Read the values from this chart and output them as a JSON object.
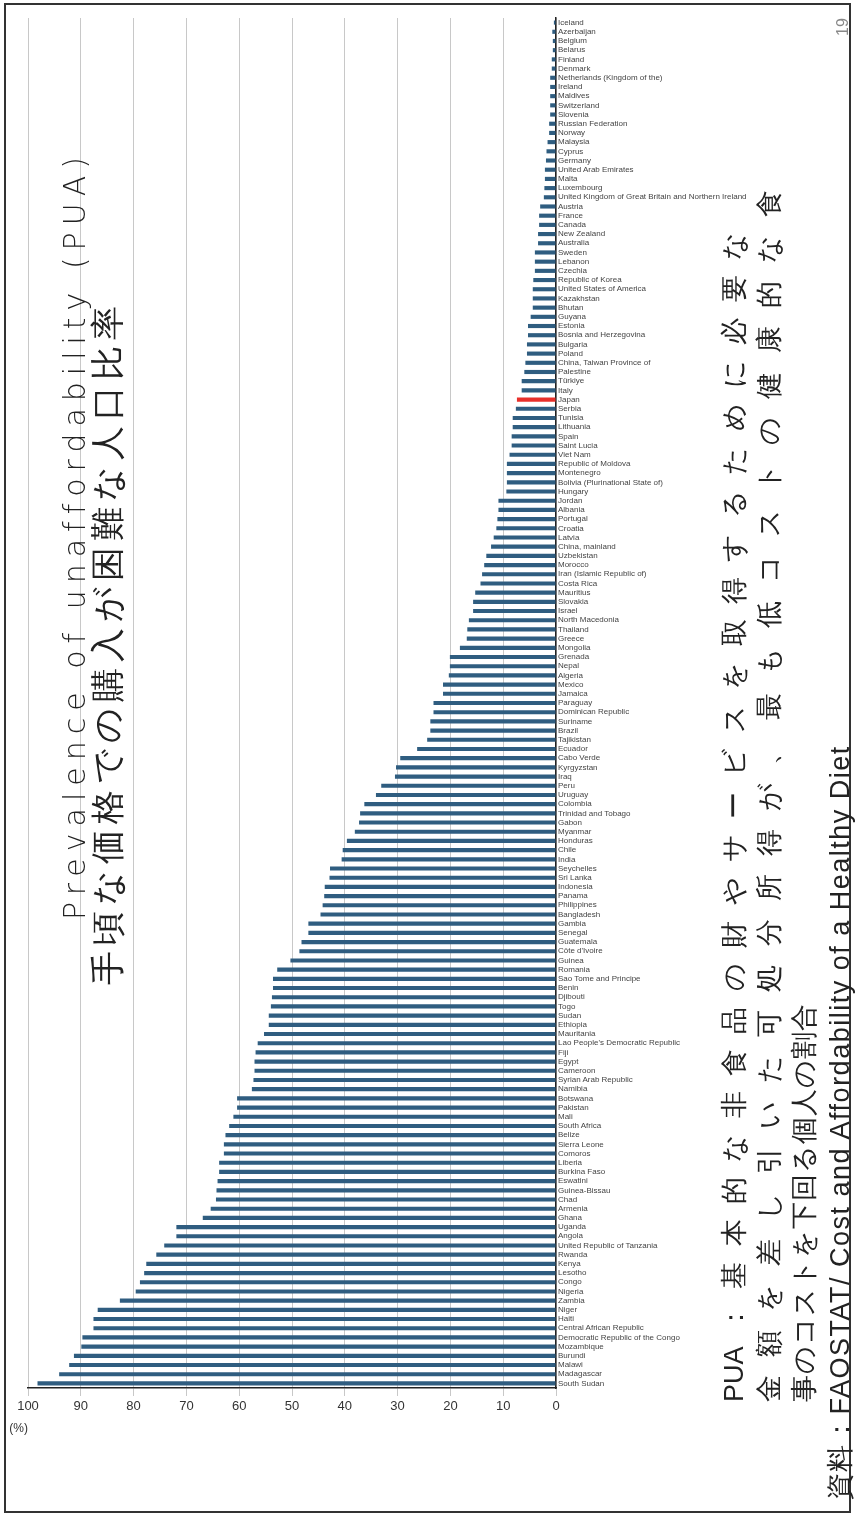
{
  "chart_data": {
    "type": "bar",
    "orientation": "horizontal",
    "title": "Prevalence of unaffordability (PUA)",
    "subtitle": "手頃な価格での購入が困難な人口比率",
    "xlabel": "(%)",
    "categories": [
      "Iceland",
      "Azerbaijan",
      "Belgium",
      "Belarus",
      "Finland",
      "Denmark",
      "Netherlands (Kingdom of the)",
      "Ireland",
      "Maldives",
      "Switzerland",
      "Slovenia",
      "Russian Federation",
      "Norway",
      "Malaysia",
      "Cyprus",
      "Germany",
      "United Arab Emirates",
      "Malta",
      "Luxembourg",
      "United Kingdom of Great Britain and Northern Ireland",
      "Austria",
      "France",
      "Canada",
      "New Zealand",
      "Australia",
      "Sweden",
      "Lebanon",
      "Czechia",
      "Republic of Korea",
      "United States of America",
      "Kazakhstan",
      "Bhutan",
      "Guyana",
      "Estonia",
      "Bosnia and Herzegovina",
      "Bulgaria",
      "Poland",
      "China, Taiwan Province of",
      "Palestine",
      "Türkiye",
      "Italy",
      "Japan",
      "Serbia",
      "Tunisia",
      "Lithuania",
      "Spain",
      "Saint Lucia",
      "Viet Nam",
      "Republic of Moldova",
      "Montenegro",
      "Bolivia (Plurinational State of)",
      "Hungary",
      "Jordan",
      "Albania",
      "Portugal",
      "Croatia",
      "Latvia",
      "China, mainland",
      "Uzbekistan",
      "Morocco",
      "Iran (Islamic Republic of)",
      "Costa Rica",
      "Mauritius",
      "Slovakia",
      "Israel",
      "North Macedonia",
      "Thailand",
      "Greece",
      "Mongolia",
      "Grenada",
      "Nepal",
      "Algeria",
      "Mexico",
      "Jamaica",
      "Paraguay",
      "Dominican Republic",
      "Suriname",
      "Brazil",
      "Tajikistan",
      "Ecuador",
      "Cabo Verde",
      "Kyrgyzstan",
      "Iraq",
      "Peru",
      "Uruguay",
      "Colombia",
      "Trinidad and Tobago",
      "Gabon",
      "Myanmar",
      "Honduras",
      "Chile",
      "India",
      "Seychelles",
      "Sri Lanka",
      "Indonesia",
      "Panama",
      "Philippines",
      "Bangladesh",
      "Gambia",
      "Senegal",
      "Guatemala",
      "Côte d'Ivoire",
      "Guinea",
      "Romania",
      "Sao Tome and Principe",
      "Benin",
      "Djibouti",
      "Togo",
      "Sudan",
      "Ethiopia",
      "Mauritania",
      "Lao People's Democratic Republic",
      "Fiji",
      "Egypt",
      "Cameroon",
      "Syrian Arab Republic",
      "Namibia",
      "Botswana",
      "Pakistan",
      "Mali",
      "South Africa",
      "Belize",
      "Sierra Leone",
      "Comoros",
      "Liberia",
      "Burkina Faso",
      "Eswatini",
      "Guinea-Bissau",
      "Chad",
      "Armenia",
      "Ghana",
      "Uganda",
      "Angola",
      "United Republic of Tanzania",
      "Rwanda",
      "Kenya",
      "Lesotho",
      "Congo",
      "Nigeria",
      "Zambia",
      "Niger",
      "Haiti",
      "Central African Republic",
      "Democratic Republic of the Congo",
      "Mozambique",
      "Burundi",
      "Malawi",
      "Madagascar",
      "South Sudan"
    ],
    "values": [
      0.4,
      0.7,
      0.6,
      0.6,
      0.8,
      0.8,
      1.1,
      1.1,
      1.1,
      1.1,
      1.1,
      1.3,
      1.3,
      1.6,
      1.8,
      1.9,
      2.1,
      2.1,
      2.2,
      2.3,
      3.0,
      3.2,
      3.2,
      3.4,
      3.4,
      4.0,
      4.0,
      4.0,
      4.3,
      4.4,
      4.4,
      4.4,
      4.8,
      5.3,
      5.3,
      5.5,
      5.5,
      5.8,
      6.0,
      6.5,
      6.5,
      7.4,
      7.6,
      8.2,
      8.2,
      8.4,
      8.4,
      8.8,
      9.3,
      9.3,
      9.3,
      9.4,
      10.9,
      10.9,
      11.1,
      11.3,
      11.8,
      12.3,
      13.2,
      13.6,
      14.0,
      14.3,
      15.3,
      15.7,
      15.7,
      16.5,
      16.8,
      16.9,
      18.2,
      20.1,
      20.1,
      20.3,
      21.4,
      21.4,
      23.2,
      23.2,
      23.8,
      23.8,
      24.4,
      26.3,
      29.5,
      30.3,
      30.5,
      33.1,
      34.1,
      36.3,
      37.1,
      37.3,
      38.1,
      39.6,
      40.4,
      40.6,
      42.8,
      42.9,
      43.8,
      43.9,
      44.2,
      44.6,
      46.9,
      46.9,
      48.2,
      48.6,
      50.3,
      52.8,
      53.6,
      53.6,
      53.8,
      54.0,
      54.4,
      54.4,
      55.3,
      56.5,
      56.9,
      57.1,
      57.1,
      57.3,
      57.6,
      60.4,
      60.4,
      61.1,
      61.9,
      62.6,
      62.9,
      62.9,
      63.8,
      63.8,
      64.1,
      64.3,
      64.4,
      65.4,
      66.9,
      71.9,
      71.9,
      74.2,
      75.7,
      77.6,
      78.0,
      78.8,
      79.6,
      82.6,
      86.8,
      87.6,
      87.6,
      89.7,
      89.9,
      91.3,
      92.2,
      94.1,
      98.2
    ],
    "colors": [
      "#2f5d80",
      "#2f5d80",
      "#2f5d80",
      "#2f5d80",
      "#2f5d80",
      "#2f5d80",
      "#2f5d80",
      "#2f5d80",
      "#2f5d80",
      "#2f5d80",
      "#2f5d80",
      "#2f5d80",
      "#2f5d80",
      "#2f5d80",
      "#2f5d80",
      "#2f5d80",
      "#2f5d80",
      "#2f5d80",
      "#2f5d80",
      "#2f5d80",
      "#2f5d80",
      "#2f5d80",
      "#2f5d80",
      "#2f5d80",
      "#2f5d80",
      "#2f5d80",
      "#2f5d80",
      "#2f5d80",
      "#2f5d80",
      "#2f5d80",
      "#2f5d80",
      "#2f5d80",
      "#2f5d80",
      "#2f5d80",
      "#2f5d80",
      "#2f5d80",
      "#2f5d80",
      "#2f5d80",
      "#2f5d80",
      "#2f5d80",
      "#2f5d80",
      "#e8302a",
      "#2f5d80",
      "#2f5d80",
      "#2f5d80",
      "#2f5d80",
      "#2f5d80",
      "#2f5d80",
      "#2f5d80",
      "#2f5d80",
      "#2f5d80",
      "#2f5d80",
      "#2f5d80",
      "#2f5d80",
      "#2f5d80",
      "#2f5d80",
      "#2f5d80",
      "#2f5d80",
      "#2f5d80",
      "#2f5d80",
      "#2f5d80",
      "#2f5d80",
      "#2f5d80",
      "#2f5d80",
      "#2f5d80",
      "#2f5d80",
      "#2f5d80",
      "#2f5d80",
      "#2f5d80",
      "#2f5d80",
      "#2f5d80",
      "#2f5d80",
      "#2f5d80",
      "#2f5d80",
      "#2f5d80",
      "#2f5d80",
      "#2f5d80",
      "#2f5d80",
      "#2f5d80",
      "#2f5d80",
      "#2f5d80",
      "#2f5d80",
      "#2f5d80",
      "#2f5d80",
      "#2f5d80",
      "#2f5d80",
      "#2f5d80",
      "#2f5d80",
      "#2f5d80",
      "#2f5d80",
      "#2f5d80",
      "#2f5d80",
      "#2f5d80",
      "#2f5d80",
      "#2f5d80",
      "#2f5d80",
      "#2f5d80",
      "#2f5d80",
      "#2f5d80",
      "#2f5d80",
      "#2f5d80",
      "#2f5d80",
      "#2f5d80",
      "#2f5d80",
      "#2f5d80",
      "#2f5d80",
      "#2f5d80",
      "#2f5d80",
      "#2f5d80",
      "#2f5d80",
      "#2f5d80",
      "#2f5d80",
      "#2f5d80",
      "#2f5d80",
      "#2f5d80",
      "#2f5d80",
      "#2f5d80",
      "#2f5d80",
      "#2f5d80",
      "#2f5d80",
      "#2f5d80",
      "#2f5d80",
      "#2f5d80",
      "#2f5d80",
      "#2f5d80",
      "#2f5d80",
      "#2f5d80",
      "#2f5d80",
      "#2f5d80",
      "#2f5d80",
      "#2f5d80",
      "#2f5d80",
      "#2f5d80",
      "#2f5d80",
      "#2f5d80",
      "#2f5d80",
      "#2f5d80",
      "#2f5d80",
      "#2f5d80",
      "#2f5d80",
      "#2f5d80",
      "#2f5d80",
      "#2f5d80",
      "#2f5d80",
      "#2f5d80",
      "#2f5d80",
      "#2f5d80",
      "#2f5d80",
      "#2f5d80"
    ],
    "xlim": [
      100,
      0
    ],
    "xticks": [
      0,
      10,
      20,
      30,
      40,
      50,
      60,
      70,
      80,
      90,
      100
    ],
    "grid": "x",
    "legend": false,
    "annotations": [
      "PUA：基本的な非食品の財やサービスを取得するために必要な",
      "金額を差し引いた可処分所得が、最も低コストの健康的な食",
      "事のコストを下回る個人の割合",
      "資料：FAOSTAT/ Cost and Affordability of a Healthy Diet",
      "19"
    ]
  }
}
